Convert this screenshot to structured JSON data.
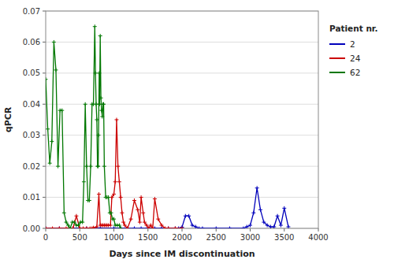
{
  "chart_data": {
    "type": "line",
    "xlabel": "Days since IM discontinuation",
    "ylabel": "qPCR",
    "legend_title": "Patient nr.",
    "legend": "right",
    "grid": "y",
    "marker": "plus",
    "xlim": [
      0,
      4000
    ],
    "ylim": [
      0,
      0.07
    ],
    "xticks": [
      0,
      500,
      1000,
      1500,
      2000,
      2500,
      3000,
      3500,
      4000
    ],
    "yticks": [
      {
        "value": 0,
        "label": "0.00"
      },
      {
        "value": 0.01,
        "label": "0.01"
      },
      {
        "value": 0.02,
        "label": "0.02"
      },
      {
        "value": 0.03,
        "label": "0.03"
      },
      {
        "value": 0.04,
        "label": "0.04"
      },
      {
        "value": 0.05,
        "label": "0.05"
      },
      {
        "value": 0.06,
        "label": "0.06"
      },
      {
        "value": 0.07,
        "label": "0.07"
      }
    ],
    "series": [
      {
        "name": "2",
        "color": "#0000bb",
        "x": [
          0,
          200,
          400,
          600,
          800,
          1000,
          1100,
          1200,
          1300,
          1400,
          1500,
          1600,
          1700,
          1800,
          1900,
          1950,
          2000,
          2050,
          2100,
          2150,
          2200,
          2250,
          2300,
          2500,
          2700,
          2900,
          2950,
          3000,
          3050,
          3100,
          3150,
          3200,
          3250,
          3300,
          3350,
          3400,
          3450,
          3500,
          3560
        ],
        "values": [
          0,
          0,
          0,
          0,
          0,
          0,
          0,
          0,
          0,
          0,
          0,
          0,
          0,
          0,
          0,
          0,
          0.0004,
          0.004,
          0.004,
          0.001,
          0.0005,
          0,
          0,
          0,
          0,
          0,
          0.0005,
          0.001,
          0.005,
          0.013,
          0.006,
          0.002,
          0.001,
          0.0005,
          0.0005,
          0.004,
          0.001,
          0.0065,
          0.0005
        ]
      },
      {
        "name": "24",
        "color": "#cc0000",
        "x": [
          0,
          100,
          200,
          300,
          400,
          450,
          500,
          550,
          600,
          650,
          680,
          700,
          750,
          780,
          800,
          820,
          840,
          860,
          880,
          900,
          920,
          950,
          970,
          1000,
          1020,
          1040,
          1060,
          1080,
          1100,
          1120,
          1140,
          1160,
          1200,
          1250,
          1300,
          1350,
          1380,
          1400,
          1430,
          1450,
          1480,
          1510,
          1540,
          1570,
          1600,
          1650,
          1700,
          1750,
          1800,
          1900,
          2000
        ],
        "values": [
          0,
          0,
          0,
          0,
          0,
          0.004,
          0,
          0,
          0,
          0,
          0,
          0.0002,
          0.0005,
          0.011,
          0.001,
          0.001,
          0.001,
          0.001,
          0.001,
          0.001,
          0.001,
          0.001,
          0.01,
          0.011,
          0.015,
          0.035,
          0.02,
          0.015,
          0.01,
          0.005,
          0.002,
          0.001,
          0,
          0.003,
          0.009,
          0.006,
          0.002,
          0.01,
          0.005,
          0.002,
          0.001,
          0,
          0.001,
          0,
          0.0095,
          0.003,
          0.001,
          0,
          0,
          0,
          0
        ]
      },
      {
        "name": "62",
        "color": "#007700",
        "x": [
          0,
          30,
          60,
          90,
          120,
          150,
          180,
          210,
          240,
          270,
          300,
          330,
          360,
          390,
          420,
          450,
          480,
          510,
          540,
          560,
          580,
          600,
          620,
          640,
          660,
          680,
          700,
          720,
          730,
          740,
          750,
          760,
          770,
          775,
          780,
          785,
          790,
          800,
          810,
          820,
          830,
          840,
          850,
          860,
          880,
          900,
          920,
          940,
          960,
          980,
          1000,
          1020,
          1050,
          1080,
          1100
        ],
        "values": [
          0.048,
          0.032,
          0.021,
          0.028,
          0.06,
          0.051,
          0.02,
          0.038,
          0.038,
          0.005,
          0.002,
          0.001,
          0,
          0.002,
          0.002,
          0.001,
          0.001,
          0.002,
          0.002,
          0.015,
          0.04,
          0.02,
          0.009,
          0.009,
          0.02,
          0.04,
          0.04,
          0.065,
          0.05,
          0.04,
          0.035,
          0.02,
          0.02,
          0.03,
          0.04,
          0.05,
          0.04,
          0.062,
          0.042,
          0.038,
          0.036,
          0.04,
          0.04,
          0.02,
          0.01,
          0.01,
          0.01,
          0.005,
          0.005,
          0.003,
          0.003,
          0.001,
          0.001,
          0.001,
          0.0
        ]
      }
    ]
  }
}
